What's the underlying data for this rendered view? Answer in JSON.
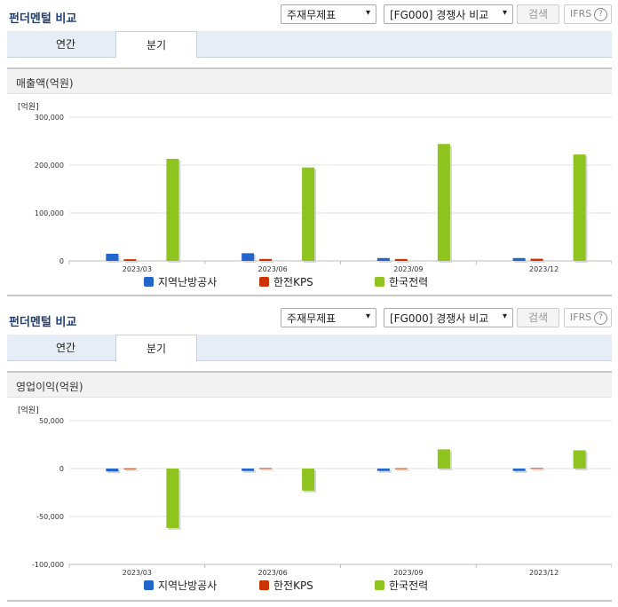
{
  "header": {
    "title": "펀더멘털 비교",
    "select_report": "주재무제표",
    "select_group": "[FG000] 경쟁사 비교",
    "search_label": "검색",
    "ifrs_label": "IFRS",
    "help_symbol": "?",
    "dropdown_symbol": "▾"
  },
  "tabs": [
    {
      "label": "연간",
      "active": false
    },
    {
      "label": "분기",
      "active": true
    }
  ],
  "colors": {
    "series1": "#2266cc",
    "series2": "#cc3300",
    "series3": "#8fc31f",
    "title": "#1f3e78"
  },
  "chart_data": [
    {
      "type": "bar",
      "title": "매출액(억원)",
      "unit_label": "[억원]",
      "categories": [
        "2023/03",
        "2023/06",
        "2023/09",
        "2023/12"
      ],
      "ylim": [
        0,
        300000
      ],
      "yticks": [
        0,
        100000,
        200000,
        300000
      ],
      "ytick_labels": [
        "0",
        "100,000",
        "200,000",
        "300,000"
      ],
      "grid": true,
      "legend_position": "bottom",
      "series": [
        {
          "name": "지역난방공사",
          "values": [
            15000,
            16000,
            6000,
            6000
          ]
        },
        {
          "name": "한전KPS",
          "values": [
            3500,
            4000,
            4000,
            4500
          ]
        },
        {
          "name": "한국전력",
          "values": [
            213000,
            195000,
            244000,
            222000
          ]
        }
      ]
    },
    {
      "type": "bar",
      "title": "영업이익(억원)",
      "unit_label": "[억원]",
      "categories": [
        "2023/03",
        "2023/06",
        "2023/09",
        "2023/12"
      ],
      "ylim": [
        -100000,
        50000
      ],
      "yticks": [
        -100000,
        -50000,
        0,
        50000
      ],
      "ytick_labels": [
        "-100,000",
        "-50,000",
        "0",
        "50,000"
      ],
      "grid": true,
      "legend_position": "bottom",
      "series": [
        {
          "name": "지역난방공사",
          "values": [
            -3000,
            -2500,
            -2500,
            -2500
          ]
        },
        {
          "name": "한전KPS",
          "values": [
            200,
            500,
            300,
            600
          ]
        },
        {
          "name": "한국전력",
          "values": [
            -62000,
            -23000,
            20000,
            19000
          ]
        }
      ]
    }
  ]
}
